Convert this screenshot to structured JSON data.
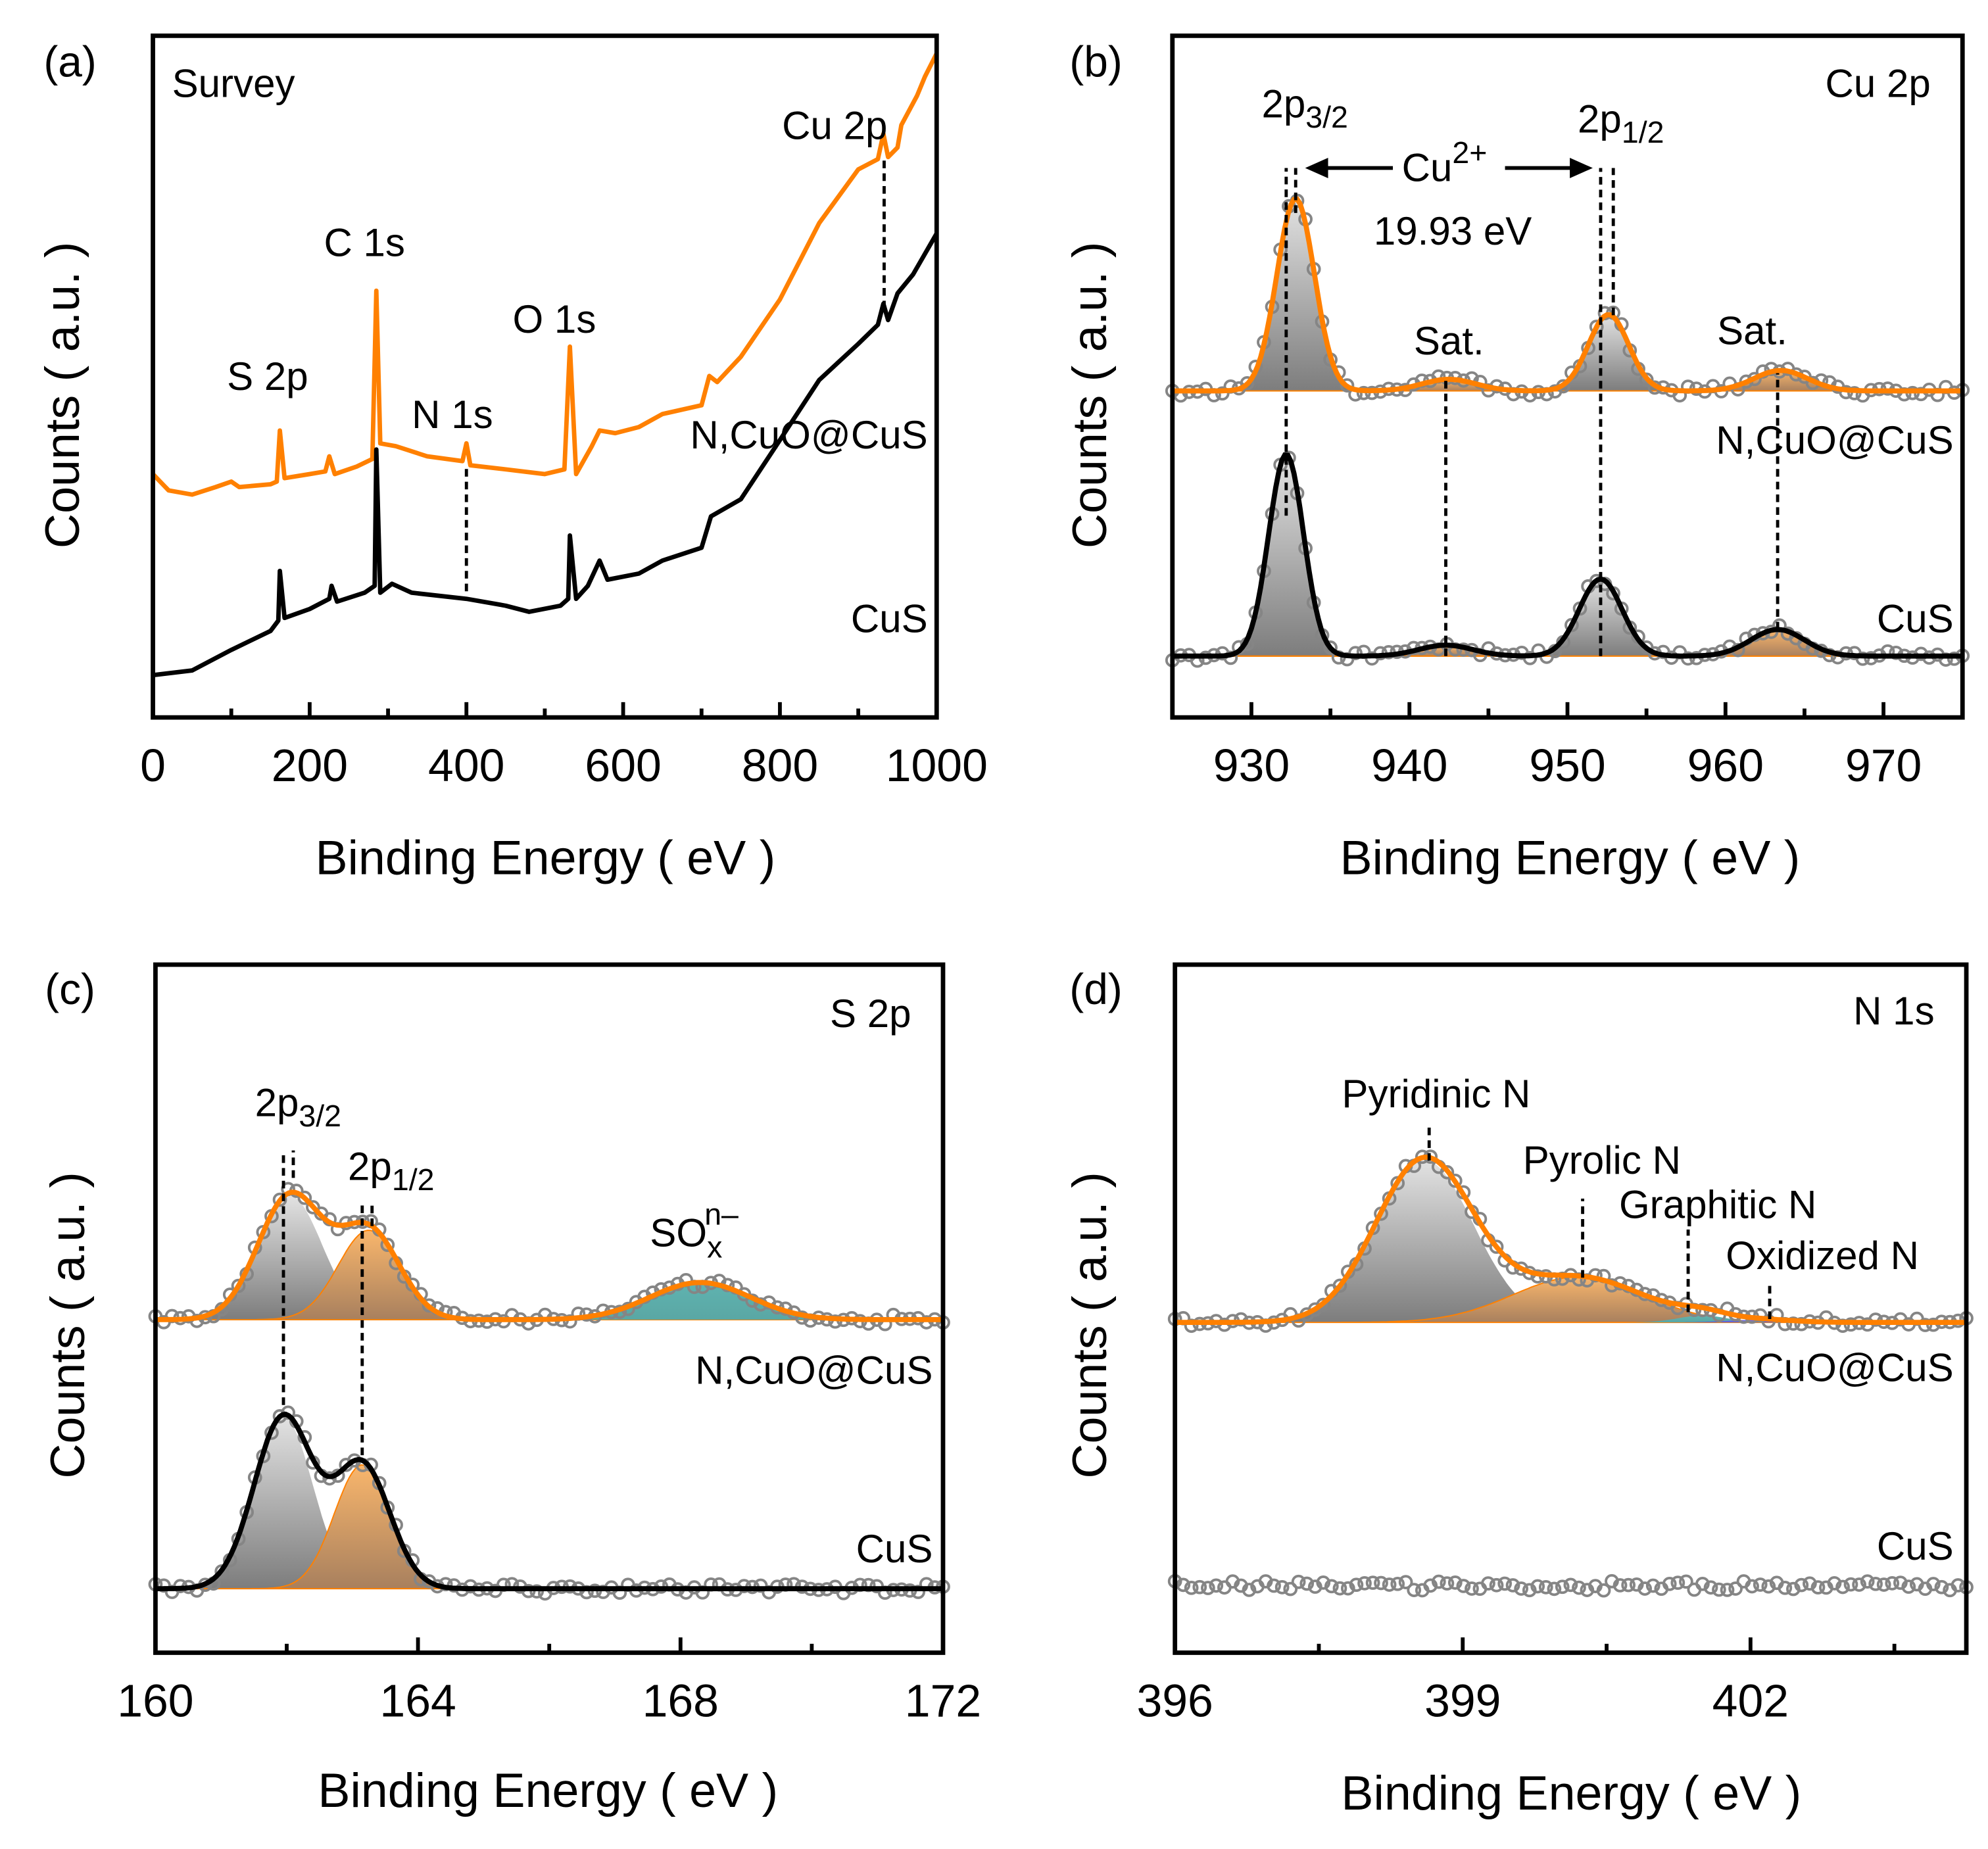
{
  "chart_data": [
    {
      "panel_label": "(a)",
      "type": "line",
      "title": "Survey",
      "xlabel": "Binding Energy ( eV )",
      "ylabel": "Counts ( a.u. )",
      "xlim": [
        0,
        1000
      ],
      "ylim": [
        0,
        100
      ],
      "xticks": [
        0,
        200,
        400,
        600,
        800,
        1000
      ],
      "xticklabels": [
        "0",
        "200",
        "400",
        "600",
        "800",
        "1000"
      ],
      "minor_xticks": [
        100,
        300,
        500,
        700,
        900
      ],
      "peak_labels": [
        "S 2p",
        "C 1s",
        "N 1s",
        "O 1s",
        "Cu 2p"
      ],
      "markers": [
        {
          "x": 400,
          "y0": 18.5,
          "y1": 37.0
        },
        {
          "x": 933,
          "y0": 60.0,
          "y1": 82.0
        }
      ],
      "series": [
        {
          "name": "N,CuO@CuS",
          "color": "#ff8000",
          "points": [
            [
              0,
              35.7
            ],
            [
              20,
              33.3
            ],
            [
              50,
              32.7
            ],
            [
              80,
              33.8
            ],
            [
              100,
              34.6
            ],
            [
              110,
              33.8
            ],
            [
              150,
              34.2
            ],
            [
              158,
              34.6
            ],
            [
              162,
              42.1
            ],
            [
              168,
              35.1
            ],
            [
              200,
              35.7
            ],
            [
              220,
              36.1
            ],
            [
              225,
              38.3
            ],
            [
              232,
              35.7
            ],
            [
              260,
              36.8
            ],
            [
              280,
              37.9
            ],
            [
              285,
              62.6
            ],
            [
              290,
              40.2
            ],
            [
              310,
              39.8
            ],
            [
              350,
              38.3
            ],
            [
              395,
              37.6
            ],
            [
              400,
              40.2
            ],
            [
              405,
              37.0
            ],
            [
              450,
              36.4
            ],
            [
              500,
              35.7
            ],
            [
              525,
              36.4
            ],
            [
              532,
              54.4
            ],
            [
              540,
              35.7
            ],
            [
              560,
              39.8
            ],
            [
              570,
              42.1
            ],
            [
              590,
              41.7
            ],
            [
              620,
              42.6
            ],
            [
              650,
              44.5
            ],
            [
              700,
              45.8
            ],
            [
              710,
              50.1
            ],
            [
              720,
              49.2
            ],
            [
              750,
              52.9
            ],
            [
              800,
              61.3
            ],
            [
              850,
              72.5
            ],
            [
              900,
              80.4
            ],
            [
              925,
              81.9
            ],
            [
              932,
              85.6
            ],
            [
              938,
              82.2
            ],
            [
              950,
              83.6
            ],
            [
              955,
              86.9
            ],
            [
              975,
              91.2
            ],
            [
              985,
              94.0
            ],
            [
              1000,
              97.4
            ]
          ]
        },
        {
          "name": "CuS",
          "color": "#000000",
          "points": [
            [
              0,
              6.2
            ],
            [
              50,
              6.9
            ],
            [
              100,
              9.9
            ],
            [
              150,
              12.7
            ],
            [
              160,
              14.2
            ],
            [
              162,
              21.5
            ],
            [
              168,
              14.6
            ],
            [
              200,
              15.9
            ],
            [
              225,
              17.4
            ],
            [
              228,
              19.3
            ],
            [
              235,
              17.0
            ],
            [
              270,
              18.3
            ],
            [
              283,
              19.3
            ],
            [
              285,
              39.3
            ],
            [
              290,
              18.3
            ],
            [
              305,
              19.6
            ],
            [
              330,
              18.3
            ],
            [
              400,
              17.4
            ],
            [
              450,
              16.4
            ],
            [
              480,
              15.5
            ],
            [
              520,
              16.4
            ],
            [
              530,
              17.4
            ],
            [
              532,
              26.7
            ],
            [
              540,
              17.4
            ],
            [
              555,
              19.3
            ],
            [
              570,
              23.0
            ],
            [
              580,
              20.2
            ],
            [
              620,
              21.1
            ],
            [
              650,
              23.0
            ],
            [
              700,
              24.9
            ],
            [
              712,
              29.5
            ],
            [
              750,
              32.0
            ],
            [
              800,
              40.7
            ],
            [
              850,
              49.5
            ],
            [
              900,
              54.8
            ],
            [
              925,
              57.6
            ],
            [
              932,
              60.7
            ],
            [
              938,
              58.3
            ],
            [
              950,
              62.2
            ],
            [
              970,
              65.0
            ],
            [
              1000,
              71.0
            ]
          ]
        }
      ]
    },
    {
      "panel_label": "(b)",
      "type": "line",
      "title": "Cu 2p",
      "xlabel": "Binding Energy ( eV )",
      "ylabel": "Counts ( a.u. )",
      "xlim": [
        925,
        975
      ],
      "ylim": [
        0,
        100
      ],
      "xticks": [
        930,
        940,
        950,
        960,
        970
      ],
      "xticklabels": [
        "930",
        "940",
        "950",
        "960",
        "970"
      ],
      "minor_xticks": [
        935,
        945,
        955,
        965
      ],
      "annotations": {
        "p32_main": "2p",
        "p32_sub": "3/2",
        "p12_main": "2p",
        "p12_sub": "1/2",
        "ion_main": "Cu",
        "ion_sup": "2+",
        "splitting": "19.93 eV",
        "sat1": "Sat.",
        "sat2": "Sat."
      },
      "arrow": {
        "from": 933.4,
        "to": 951.6,
        "y": 80.6
      },
      "markers": [
        {
          "x": 932.2,
          "y0": 29.6,
          "y1": 80.6
        },
        {
          "x": 932.8,
          "y0": 74.0,
          "y1": 80.6
        },
        {
          "x": 952.1,
          "y0": 9.0,
          "y1": 80.6
        },
        {
          "x": 952.9,
          "y0": 59.0,
          "y1": 80.6
        },
        {
          "x": 942.3,
          "y0": 9.0,
          "y1": 49.5
        },
        {
          "x": 963.3,
          "y0": 12.9,
          "y1": 50.5
        }
      ],
      "series": [
        {
          "name": "N,CuO@CuS",
          "fit_color": "#ff8000",
          "baseline": 47.9,
          "components": [
            {
              "center": 932.8,
              "height": 28.2,
              "fwhm": 2.8,
              "fill": "gray"
            },
            {
              "center": 942.5,
              "height": 1.7,
              "fwhm": 4.0,
              "fill": "orange"
            },
            {
              "center": 952.6,
              "height": 11.2,
              "fwhm": 3.0,
              "fill": "gray"
            },
            {
              "center": 963.5,
              "height": 3.0,
              "fwhm": 4.0,
              "fill": "orange"
            }
          ]
        },
        {
          "name": "CuS",
          "fit_color": "#000000",
          "baseline": 9.0,
          "components": [
            {
              "center": 932.2,
              "height": 29.6,
              "fwhm": 2.6,
              "fill": "gray"
            },
            {
              "center": 942.3,
              "height": 1.6,
              "fwhm": 4.0,
              "fill": "orange"
            },
            {
              "center": 952.1,
              "height": 11.3,
              "fwhm": 3.2,
              "fill": "gray"
            },
            {
              "center": 963.3,
              "height": 3.9,
              "fwhm": 4.0,
              "fill": "orange"
            }
          ]
        }
      ]
    },
    {
      "panel_label": "(c)",
      "type": "line",
      "title": "S 2p",
      "xlabel": "Binding Energy ( eV )",
      "ylabel": "Counts ( a.u. )",
      "xlim": [
        160,
        172
      ],
      "ylim": [
        0,
        100
      ],
      "xticks": [
        160,
        164,
        168,
        172
      ],
      "xticklabels": [
        "160",
        "164",
        "168",
        "172"
      ],
      "minor_xticks": [
        162,
        166,
        170
      ],
      "annotations": {
        "p32_main": "2p",
        "p32_sub": "3/2",
        "p12_main": "2p",
        "p12_sub": "1/2",
        "sox_main": "SO",
        "sox_sub": "x",
        "sox_sup": "n–"
      },
      "markers": [
        {
          "x": 161.95,
          "y0": 36.0,
          "y1": 73.0
        },
        {
          "x": 162.1,
          "y0": 69.0,
          "y1": 73.0
        },
        {
          "x": 163.15,
          "y0": 28.7,
          "y1": 65.0
        },
        {
          "x": 163.3,
          "y0": 62.0,
          "y1": 65.0
        }
      ],
      "series": [
        {
          "name": "N,CuO@CuS",
          "fit_color": "#ff8000",
          "baseline": 48.4,
          "components": [
            {
              "center": 162.05,
              "height": 18.0,
              "fwhm": 1.15,
              "fill": "gray"
            },
            {
              "center": 163.25,
              "height": 13.0,
              "fwhm": 1.1,
              "fill": "orange"
            },
            {
              "center": 168.3,
              "height": 5.4,
              "fwhm": 1.8,
              "fill": "teal"
            }
          ]
        },
        {
          "name": "CuS",
          "fit_color": "#000000",
          "baseline": 9.3,
          "components": [
            {
              "center": 161.95,
              "height": 25.0,
              "fwhm": 1.05,
              "fill": "gray"
            },
            {
              "center": 163.15,
              "height": 18.0,
              "fwhm": 1.0,
              "fill": "orange"
            }
          ]
        }
      ]
    },
    {
      "panel_label": "(d)",
      "type": "line",
      "title": "N 1s",
      "xlabel": "Binding Energy ( eV )",
      "ylabel": "Counts ( a.u. )",
      "xlim": [
        396,
        404.25
      ],
      "ylim": [
        0,
        100
      ],
      "xticks": [
        396,
        399,
        402
      ],
      "xticklabels": [
        "396",
        "399",
        "402"
      ],
      "minor_xticks": [
        397.5,
        400.5,
        403.5
      ],
      "annotations": {
        "pyridinic": "Pyridinic N",
        "pyrolic": "Pyrolic N",
        "graphitic": "Graphitic N",
        "oxidized": "Oxidized N"
      },
      "markers": [
        {
          "x": 398.65,
          "y0": 71.5,
          "y1": 77.0
        },
        {
          "x": 400.25,
          "y0": 54.5,
          "y1": 66.0
        },
        {
          "x": 401.35,
          "y0": 49.5,
          "y1": 61.5
        },
        {
          "x": 402.2,
          "y0": 48.5,
          "y1": 53.5
        }
      ],
      "series": [
        {
          "name": "N,CuO@CuS",
          "fit_color": "#ff8000",
          "baseline": 48.0,
          "components": [
            {
              "center": 398.6,
              "height": 23.6,
              "fwhm": 1.2,
              "fill": "gray"
            },
            {
              "center": 400.2,
              "height": 6.6,
              "fwhm": 1.6,
              "fill": "orange"
            },
            {
              "center": 401.5,
              "height": 1.0,
              "fwhm": 0.6,
              "fill": "teal"
            },
            {
              "center": 402.1,
              "height": 0.4,
              "fwhm": 0.8,
              "fill": "blue"
            }
          ]
        },
        {
          "name": "CuS",
          "fit_color": null,
          "baseline": 9.7,
          "components": []
        }
      ]
    }
  ],
  "colors": {
    "orange": "#ff8000",
    "black": "#000000",
    "markers": "#808080",
    "teal": "#5fb3b0",
    "blue": "#6a6ae0"
  }
}
